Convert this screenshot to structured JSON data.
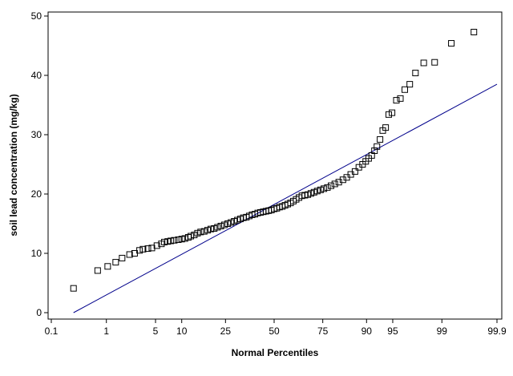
{
  "chart_data": {
    "type": "scatter",
    "subtype": "normal-probability-plot",
    "xlabel": "Normal Percentiles",
    "ylabel": "soil lead concentration (mg/kg)",
    "x_scale": "normal-probability",
    "xlim": [
      0.1,
      99.9
    ],
    "x_ticks": [
      0.1,
      1,
      5,
      10,
      25,
      50,
      75,
      90,
      95,
      99,
      99.9
    ],
    "x_tick_labels": [
      "0.1",
      "1",
      "5",
      "10",
      "25",
      "50",
      "75",
      "90",
      "95",
      "99",
      "99.9"
    ],
    "ylim": [
      0,
      50
    ],
    "y_ticks": [
      0,
      10,
      20,
      30,
      40,
      50
    ],
    "y_tick_labels": [
      "0",
      "10",
      "20",
      "30",
      "40",
      "50"
    ],
    "grid": false,
    "legend": "none",
    "colors": {
      "markers": "#000000",
      "reference_line": "#00008b",
      "axes": "#000000"
    },
    "marker": "open-square",
    "reference_line": {
      "x": [
        0.27,
        99.9
      ],
      "y": [
        0.0,
        38.5
      ]
    },
    "points": {
      "x": [
        0.27,
        0.72,
        1.05,
        1.4,
        1.75,
        2.25,
        2.65,
        3.1,
        3.45,
        4.0,
        4.5,
        5.2,
        5.9,
        6.4,
        7.0,
        7.6,
        8.3,
        9.2,
        10.0,
        10.8,
        11.7,
        12.4,
        13.4,
        14.4,
        15.4,
        16.6,
        17.8,
        19.0,
        20.3,
        21.6,
        23.0,
        24.5,
        26.0,
        27.5,
        29.0,
        30.5,
        32.0,
        33.5,
        35.0,
        36.5,
        38.0,
        39.5,
        41.0,
        42.5,
        44.0,
        45.5,
        47.0,
        48.5,
        50.0,
        51.5,
        53.0,
        54.5,
        56.0,
        57.5,
        59.0,
        60.5,
        62.0,
        63.5,
        65.0,
        66.5,
        68.0,
        69.5,
        71.0,
        72.5,
        74.0,
        75.5,
        77.0,
        78.5,
        80.0,
        81.5,
        83.0,
        84.3,
        85.6,
        86.9,
        88.0,
        89.0,
        89.8,
        90.5,
        91.2,
        91.8,
        92.3,
        92.9,
        93.4,
        93.9,
        94.4,
        94.9,
        95.5,
        96.0,
        96.5,
        97.0,
        97.5,
        98.1,
        98.7,
        99.3,
        99.72
      ],
      "y": [
        4.1,
        7.1,
        7.8,
        8.5,
        9.2,
        9.8,
        10.0,
        10.5,
        10.7,
        10.8,
        10.9,
        11.3,
        11.6,
        11.9,
        12.0,
        12.1,
        12.2,
        12.3,
        12.4,
        12.5,
        12.7,
        12.9,
        13.1,
        13.4,
        13.6,
        13.7,
        13.9,
        14.1,
        14.2,
        14.4,
        14.6,
        14.8,
        15.0,
        15.2,
        15.4,
        15.6,
        15.8,
        16.0,
        16.1,
        16.3,
        16.5,
        16.6,
        16.8,
        16.9,
        17.0,
        17.1,
        17.2,
        17.3,
        17.5,
        17.6,
        17.8,
        17.9,
        18.1,
        18.3,
        18.5,
        18.8,
        19.1,
        19.4,
        19.7,
        19.8,
        19.9,
        20.1,
        20.3,
        20.5,
        20.7,
        20.9,
        21.1,
        21.4,
        21.7,
        22.0,
        22.4,
        22.8,
        23.3,
        23.8,
        24.5,
        25.0,
        25.5,
        26.0,
        26.5,
        27.3,
        28.0,
        29.2,
        30.7,
        31.2,
        33.4,
        33.7,
        35.8,
        36.1,
        37.6,
        38.5,
        40.4,
        42.1,
        42.2,
        45.4,
        47.3
      ]
    }
  }
}
